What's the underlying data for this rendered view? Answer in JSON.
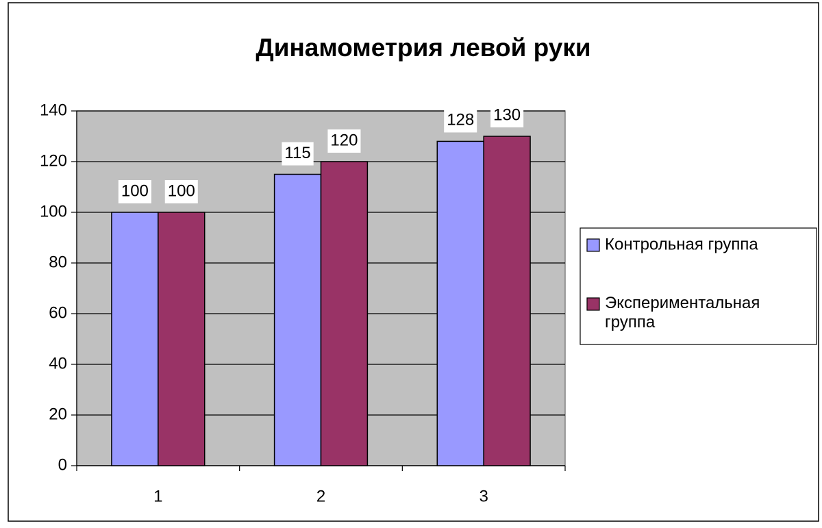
{
  "chart_data": {
    "type": "bar",
    "title": "Динамометрия левой руки",
    "categories": [
      "1",
      "2",
      "3"
    ],
    "series": [
      {
        "name": "Контрольная группа",
        "color": "#9999ff",
        "values": [
          100,
          115,
          128
        ]
      },
      {
        "name": "Экспериментальная группа",
        "color": "#993366",
        "values": [
          100,
          120,
          130
        ]
      }
    ],
    "ylim": [
      0,
      140
    ],
    "yticks": [
      0,
      20,
      40,
      60,
      80,
      100,
      120,
      140
    ],
    "grid": true,
    "legend": "right",
    "plot_background": "#c0c0c0"
  }
}
